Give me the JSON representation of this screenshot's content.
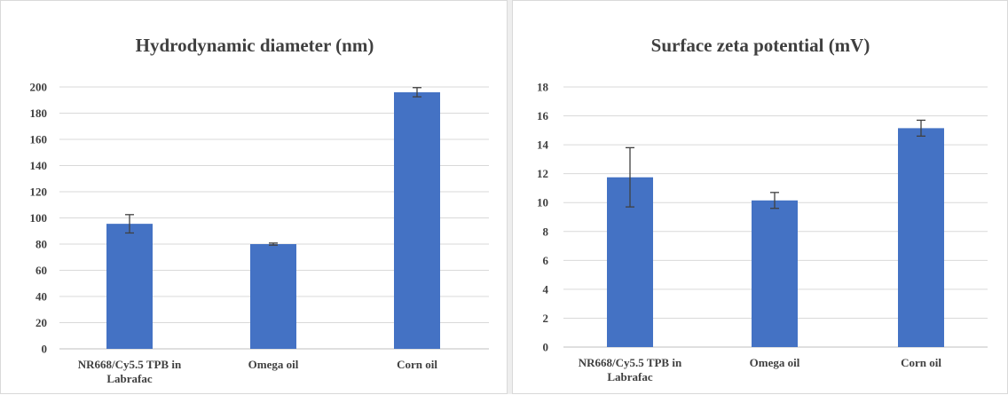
{
  "chart_data": [
    {
      "type": "bar",
      "title": "Hydrodynamic diameter (nm)",
      "categories": [
        [
          "NR668/Cy5.5 TPB in",
          "Labrafac"
        ],
        [
          "Omega oil"
        ],
        [
          "Corn oil"
        ]
      ],
      "values": [
        95.5,
        80,
        196
      ],
      "errors": [
        7,
        0.8,
        3.5
      ],
      "ylim": [
        0,
        200
      ],
      "yticks": [
        0,
        20,
        40,
        60,
        80,
        100,
        120,
        140,
        160,
        180,
        200
      ],
      "grid": true,
      "color": "#4472c4"
    },
    {
      "type": "bar",
      "title": "Surface zeta potential (mV)",
      "categories": [
        [
          "NR668/Cy5.5 TPB in",
          "Labrafac"
        ],
        [
          "Omega oil"
        ],
        [
          "Corn oil"
        ]
      ],
      "values": [
        11.75,
        10.15,
        15.15
      ],
      "errors": [
        2.05,
        0.55,
        0.55
      ],
      "ylim": [
        0,
        18
      ],
      "yticks": [
        0,
        2,
        4,
        6,
        8,
        10,
        12,
        14,
        16,
        18
      ],
      "grid": true,
      "color": "#4472c4"
    }
  ]
}
